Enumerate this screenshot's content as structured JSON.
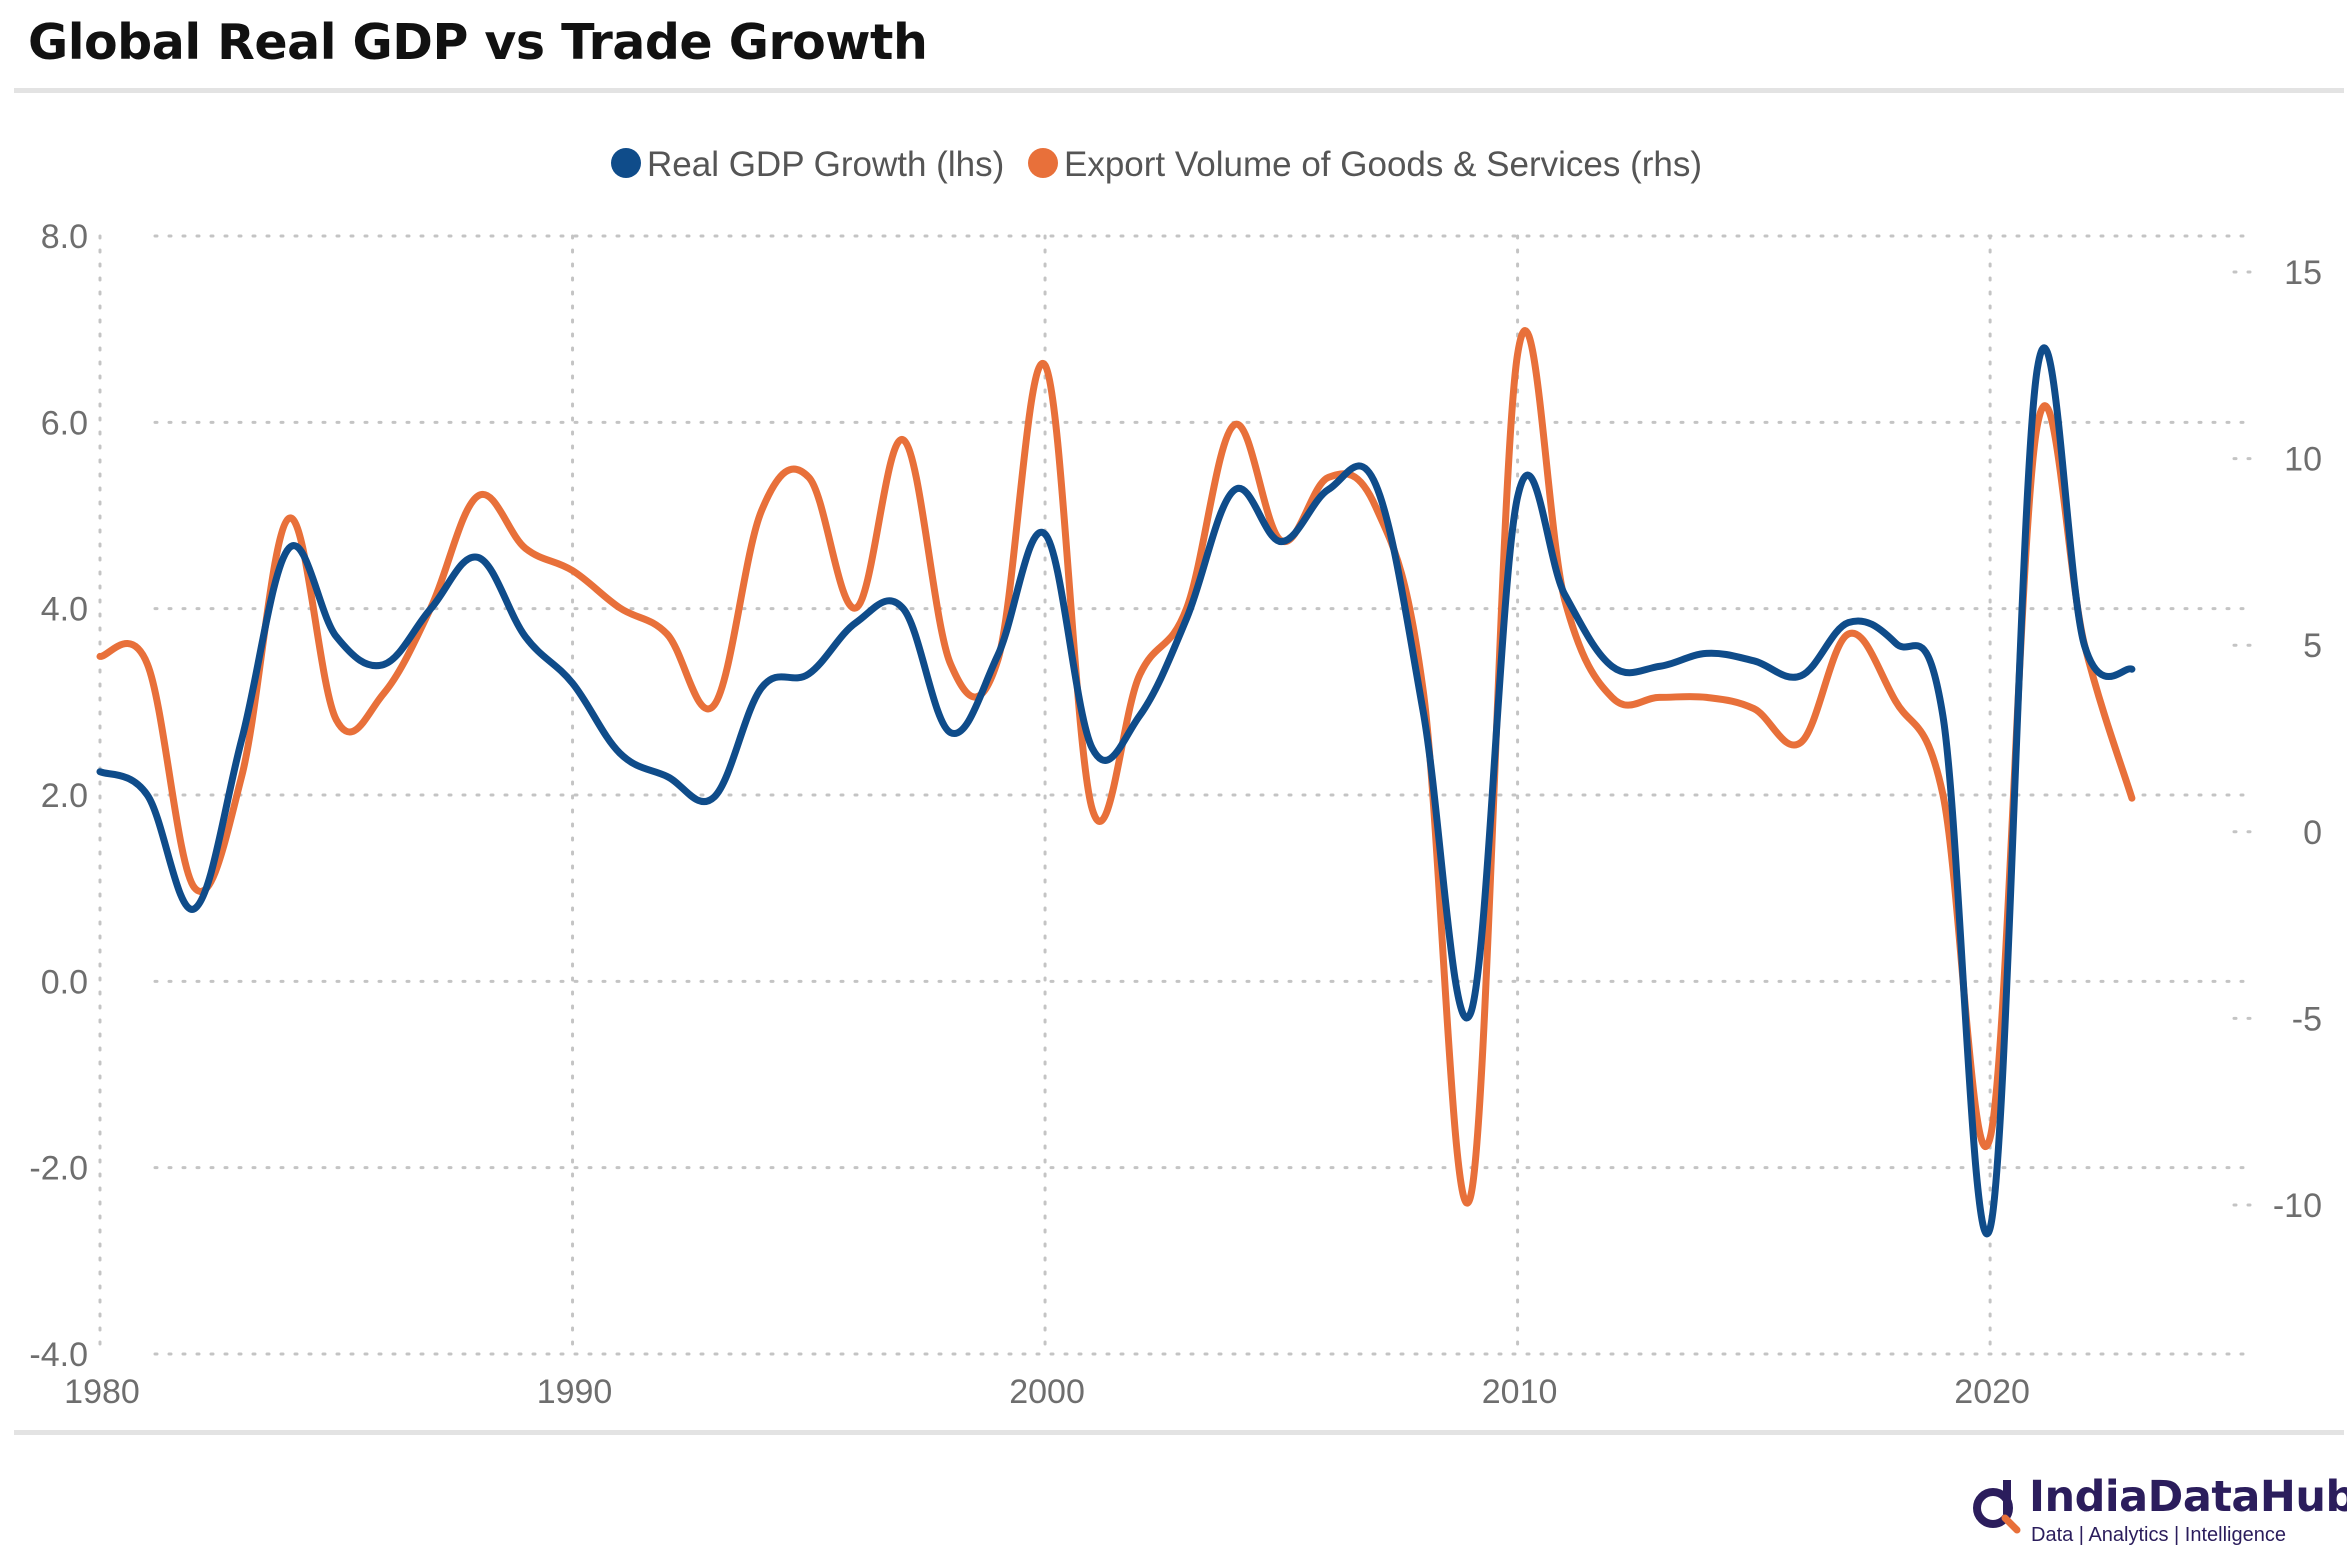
{
  "title": "Global Real GDP vs Trade Growth",
  "brand": {
    "name": "IndiaDataHub",
    "tagline": "Data | Analytics | Intelligence"
  },
  "chart_data": {
    "type": "line",
    "title": "Global Real GDP vs Trade Growth",
    "legend_position": "top-center",
    "grid": true,
    "x": [
      1980,
      1981,
      1982,
      1983,
      1984,
      1985,
      1986,
      1987,
      1988,
      1989,
      1990,
      1991,
      1992,
      1993,
      1994,
      1995,
      1996,
      1997,
      1998,
      1999,
      2000,
      2001,
      2002,
      2003,
      2004,
      2005,
      2006,
      2007,
      2008,
      2009,
      2010,
      2011,
      2012,
      2013,
      2014,
      2015,
      2016,
      2017,
      2018,
      2019,
      2020,
      2021,
      2022,
      2023
    ],
    "xlim": [
      1980,
      2025.5
    ],
    "x_ticks": [
      "1980",
      "1990",
      "2000",
      "2010",
      "2020"
    ],
    "y_left": {
      "ylim": [
        -4,
        8
      ],
      "ticks": [
        "8.0",
        "6.0",
        "4.0",
        "2.0",
        "0.0",
        "-2.0",
        "-4.0"
      ]
    },
    "y_right": {
      "ylim": [
        -14,
        16
      ],
      "ticks": [
        "15",
        "10",
        "5",
        "0",
        "-5",
        "-10"
      ]
    },
    "series": [
      {
        "name": "Real GDP Growth (lhs)",
        "axis": "left",
        "color": "#0f4c8a",
        "values": [
          2.25,
          2.0,
          0.78,
          2.6,
          4.65,
          3.7,
          3.4,
          4.0,
          4.55,
          3.7,
          3.2,
          2.45,
          2.2,
          1.98,
          3.15,
          3.3,
          3.85,
          4.0,
          2.67,
          3.5,
          4.8,
          2.5,
          2.85,
          3.9,
          5.27,
          4.72,
          5.28,
          5.33,
          2.9,
          -0.35,
          5.2,
          4.15,
          3.38,
          3.38,
          3.52,
          3.44,
          3.28,
          3.85,
          3.63,
          2.85,
          -2.65,
          6.58,
          3.6,
          3.35
        ]
      },
      {
        "name": "Export Volume of Goods & Services (rhs)",
        "axis": "right",
        "color": "#e8703a",
        "values": [
          4.7,
          4.5,
          -1.5,
          1.5,
          8.4,
          3.0,
          3.7,
          6.0,
          9.0,
          7.6,
          7.0,
          6.0,
          5.3,
          3.4,
          8.6,
          9.5,
          6.0,
          10.5,
          4.5,
          4.6,
          12.5,
          0.6,
          4.2,
          6.0,
          10.9,
          7.8,
          9.5,
          8.7,
          3.8,
          -9.8,
          12.8,
          6.2,
          3.6,
          3.6,
          3.6,
          3.3,
          2.4,
          5.3,
          3.5,
          1.0,
          -8.2,
          10.9,
          5.0,
          0.9
        ]
      }
    ]
  }
}
